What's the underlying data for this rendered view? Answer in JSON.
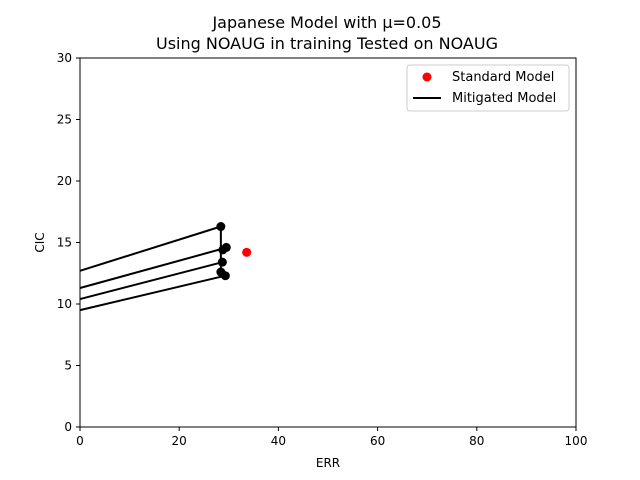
{
  "chart_data": {
    "type": "scatter",
    "title_line1": "Japanese Model with μ=0.05",
    "title_line2": "Using NOAUG in training Tested on NOAUG",
    "xlabel": "ERR",
    "ylabel": "CIC",
    "xlim": [
      0,
      100
    ],
    "ylim": [
      0,
      30
    ],
    "xticks": [
      "0",
      "20",
      "40",
      "60",
      "80",
      "100"
    ],
    "yticks": [
      "0",
      "5",
      "10",
      "15",
      "20",
      "25",
      "30"
    ],
    "legend_position": "top-right",
    "standard_model": {
      "name": "Standard Model",
      "color": "#ff0000",
      "points": [
        {
          "x": 33.6,
          "y": 14.2
        }
      ]
    },
    "mitigated_model": {
      "name": "Mitigated Model",
      "color": "#000000",
      "points": [
        {
          "x": 28.4,
          "y": 16.3
        },
        {
          "x": 29.5,
          "y": 14.6
        },
        {
          "x": 28.8,
          "y": 14.4
        },
        {
          "x": 28.7,
          "y": 13.4
        },
        {
          "x": 28.4,
          "y": 12.6
        },
        {
          "x": 29.3,
          "y": 12.3
        }
      ],
      "lines": [
        {
          "x1": 0,
          "y1": 12.7,
          "x2": 28.4,
          "y2": 16.3
        },
        {
          "x1": 0,
          "y1": 11.3,
          "x2": 28.8,
          "y2": 14.5
        },
        {
          "x1": 0,
          "y1": 10.4,
          "x2": 28.7,
          "y2": 13.4
        },
        {
          "x1": 0,
          "y1": 9.5,
          "x2": 29.3,
          "y2": 12.3
        },
        {
          "x1": 28.4,
          "y1": 16.3,
          "x2": 28.4,
          "y2": 12.6
        }
      ]
    }
  }
}
